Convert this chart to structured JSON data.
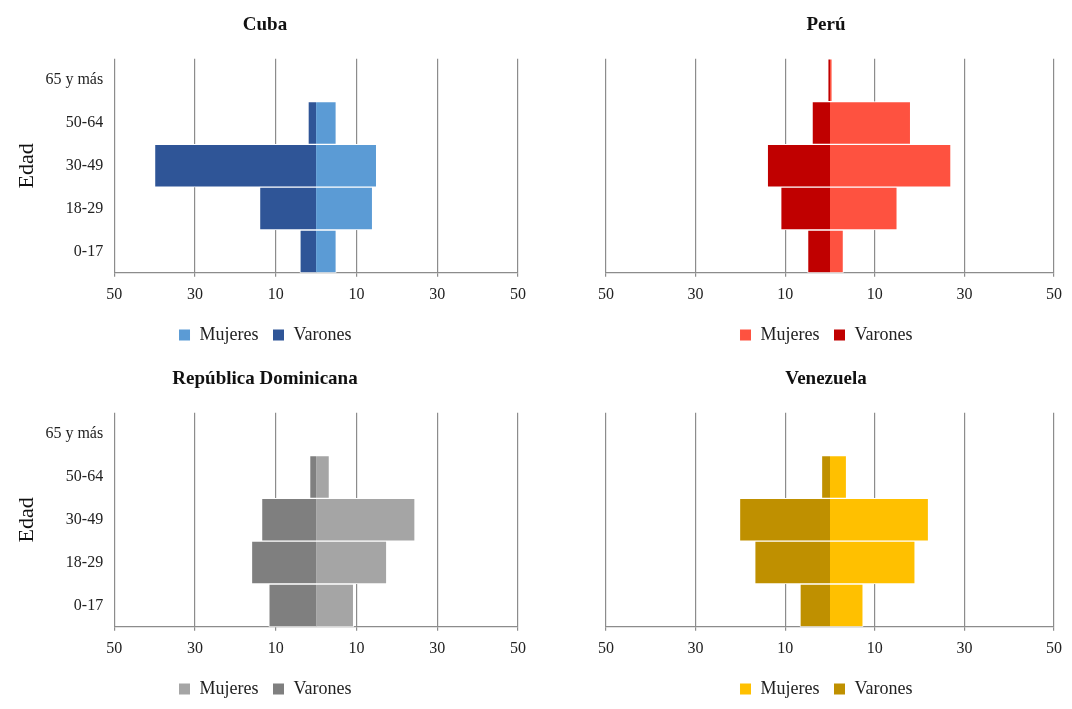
{
  "chart_data": [
    {
      "type": "bar",
      "orientation": "horizontal",
      "stacked": true,
      "title": "Cuba",
      "ylabel": "Edad",
      "categories": [
        "65 y más",
        "50-64",
        "30-49",
        "18-29",
        "0-17"
      ],
      "series": [
        {
          "name": "Mujeres",
          "color": "#5b9bd5",
          "values": [
            0,
            5,
            15,
            14,
            5
          ]
        },
        {
          "name": "Varones",
          "color": "#2f5597",
          "values": [
            0,
            -2,
            -40,
            -14,
            -4
          ]
        }
      ],
      "xlim": [
        -50,
        50
      ],
      "xticks": [
        {
          "value": -50,
          "label": "50"
        },
        {
          "value": -30,
          "label": "30"
        },
        {
          "value": -10,
          "label": "10"
        },
        10,
        30,
        50
      ],
      "grid": "x",
      "legend": "bottom"
    },
    {
      "type": "bar",
      "orientation": "horizontal",
      "stacked": true,
      "title": "Perú",
      "categories": [
        null,
        null,
        null,
        null,
        null
      ],
      "series": [
        {
          "name": "Mujeres",
          "color": "#fe5240",
          "values": [
            0.5,
            18,
            27,
            15,
            3
          ]
        },
        {
          "name": "Varones",
          "color": "#c00000",
          "values": [
            -0.5,
            -4,
            -14,
            -11,
            -5
          ]
        }
      ],
      "xlim": [
        -50,
        50
      ],
      "xticks": [
        {
          "value": -50,
          "label": "50"
        },
        {
          "value": -30,
          "label": "30"
        },
        {
          "value": -10,
          "label": "10"
        },
        10,
        30,
        50
      ],
      "grid": "x",
      "legend": "bottom",
      "tick_labels": "x"
    },
    {
      "type": "bar",
      "orientation": "horizontal",
      "stacked": true,
      "title": "República Dominicana",
      "ylabel": "Edad",
      "categories": [
        "65 y más",
        "50-64",
        "30-49",
        "18-29",
        "0-17"
      ],
      "series": [
        {
          "name": "Mujeres",
          "color": "#a5a5a5",
          "values": [
            0,
            3.3,
            24.5,
            17.5,
            9.3
          ]
        },
        {
          "name": "Varones",
          "color": "#7f7f7f",
          "values": [
            0,
            -1.6,
            -13.5,
            -16,
            -11.7
          ]
        }
      ],
      "xlim": [
        -50,
        50
      ],
      "xticks": [
        {
          "value": -50,
          "label": "50"
        },
        {
          "value": -30,
          "label": "30"
        },
        {
          "value": -10,
          "label": "10"
        },
        10,
        30,
        50
      ],
      "grid": "x",
      "legend": "bottom"
    },
    {
      "type": "bar",
      "orientation": "horizontal",
      "stacked": true,
      "title": "Venezuela",
      "categories": [
        null,
        null,
        null,
        null,
        null
      ],
      "series": [
        {
          "name": "Mujeres",
          "color": "#ffc000",
          "values": [
            0,
            3.7,
            22,
            19,
            7.4
          ]
        },
        {
          "name": "Varones",
          "color": "#bf9000",
          "values": [
            0,
            -1.9,
            -20.2,
            -16.8,
            -6.7
          ]
        }
      ],
      "xlim": [
        -50,
        50
      ],
      "xticks": [
        {
          "value": -50,
          "label": "50"
        },
        {
          "value": -30,
          "label": "30"
        },
        {
          "value": -10,
          "label": "10"
        },
        10,
        30,
        50
      ],
      "grid": "x",
      "legend": "bottom",
      "tick_labels": "x"
    }
  ]
}
